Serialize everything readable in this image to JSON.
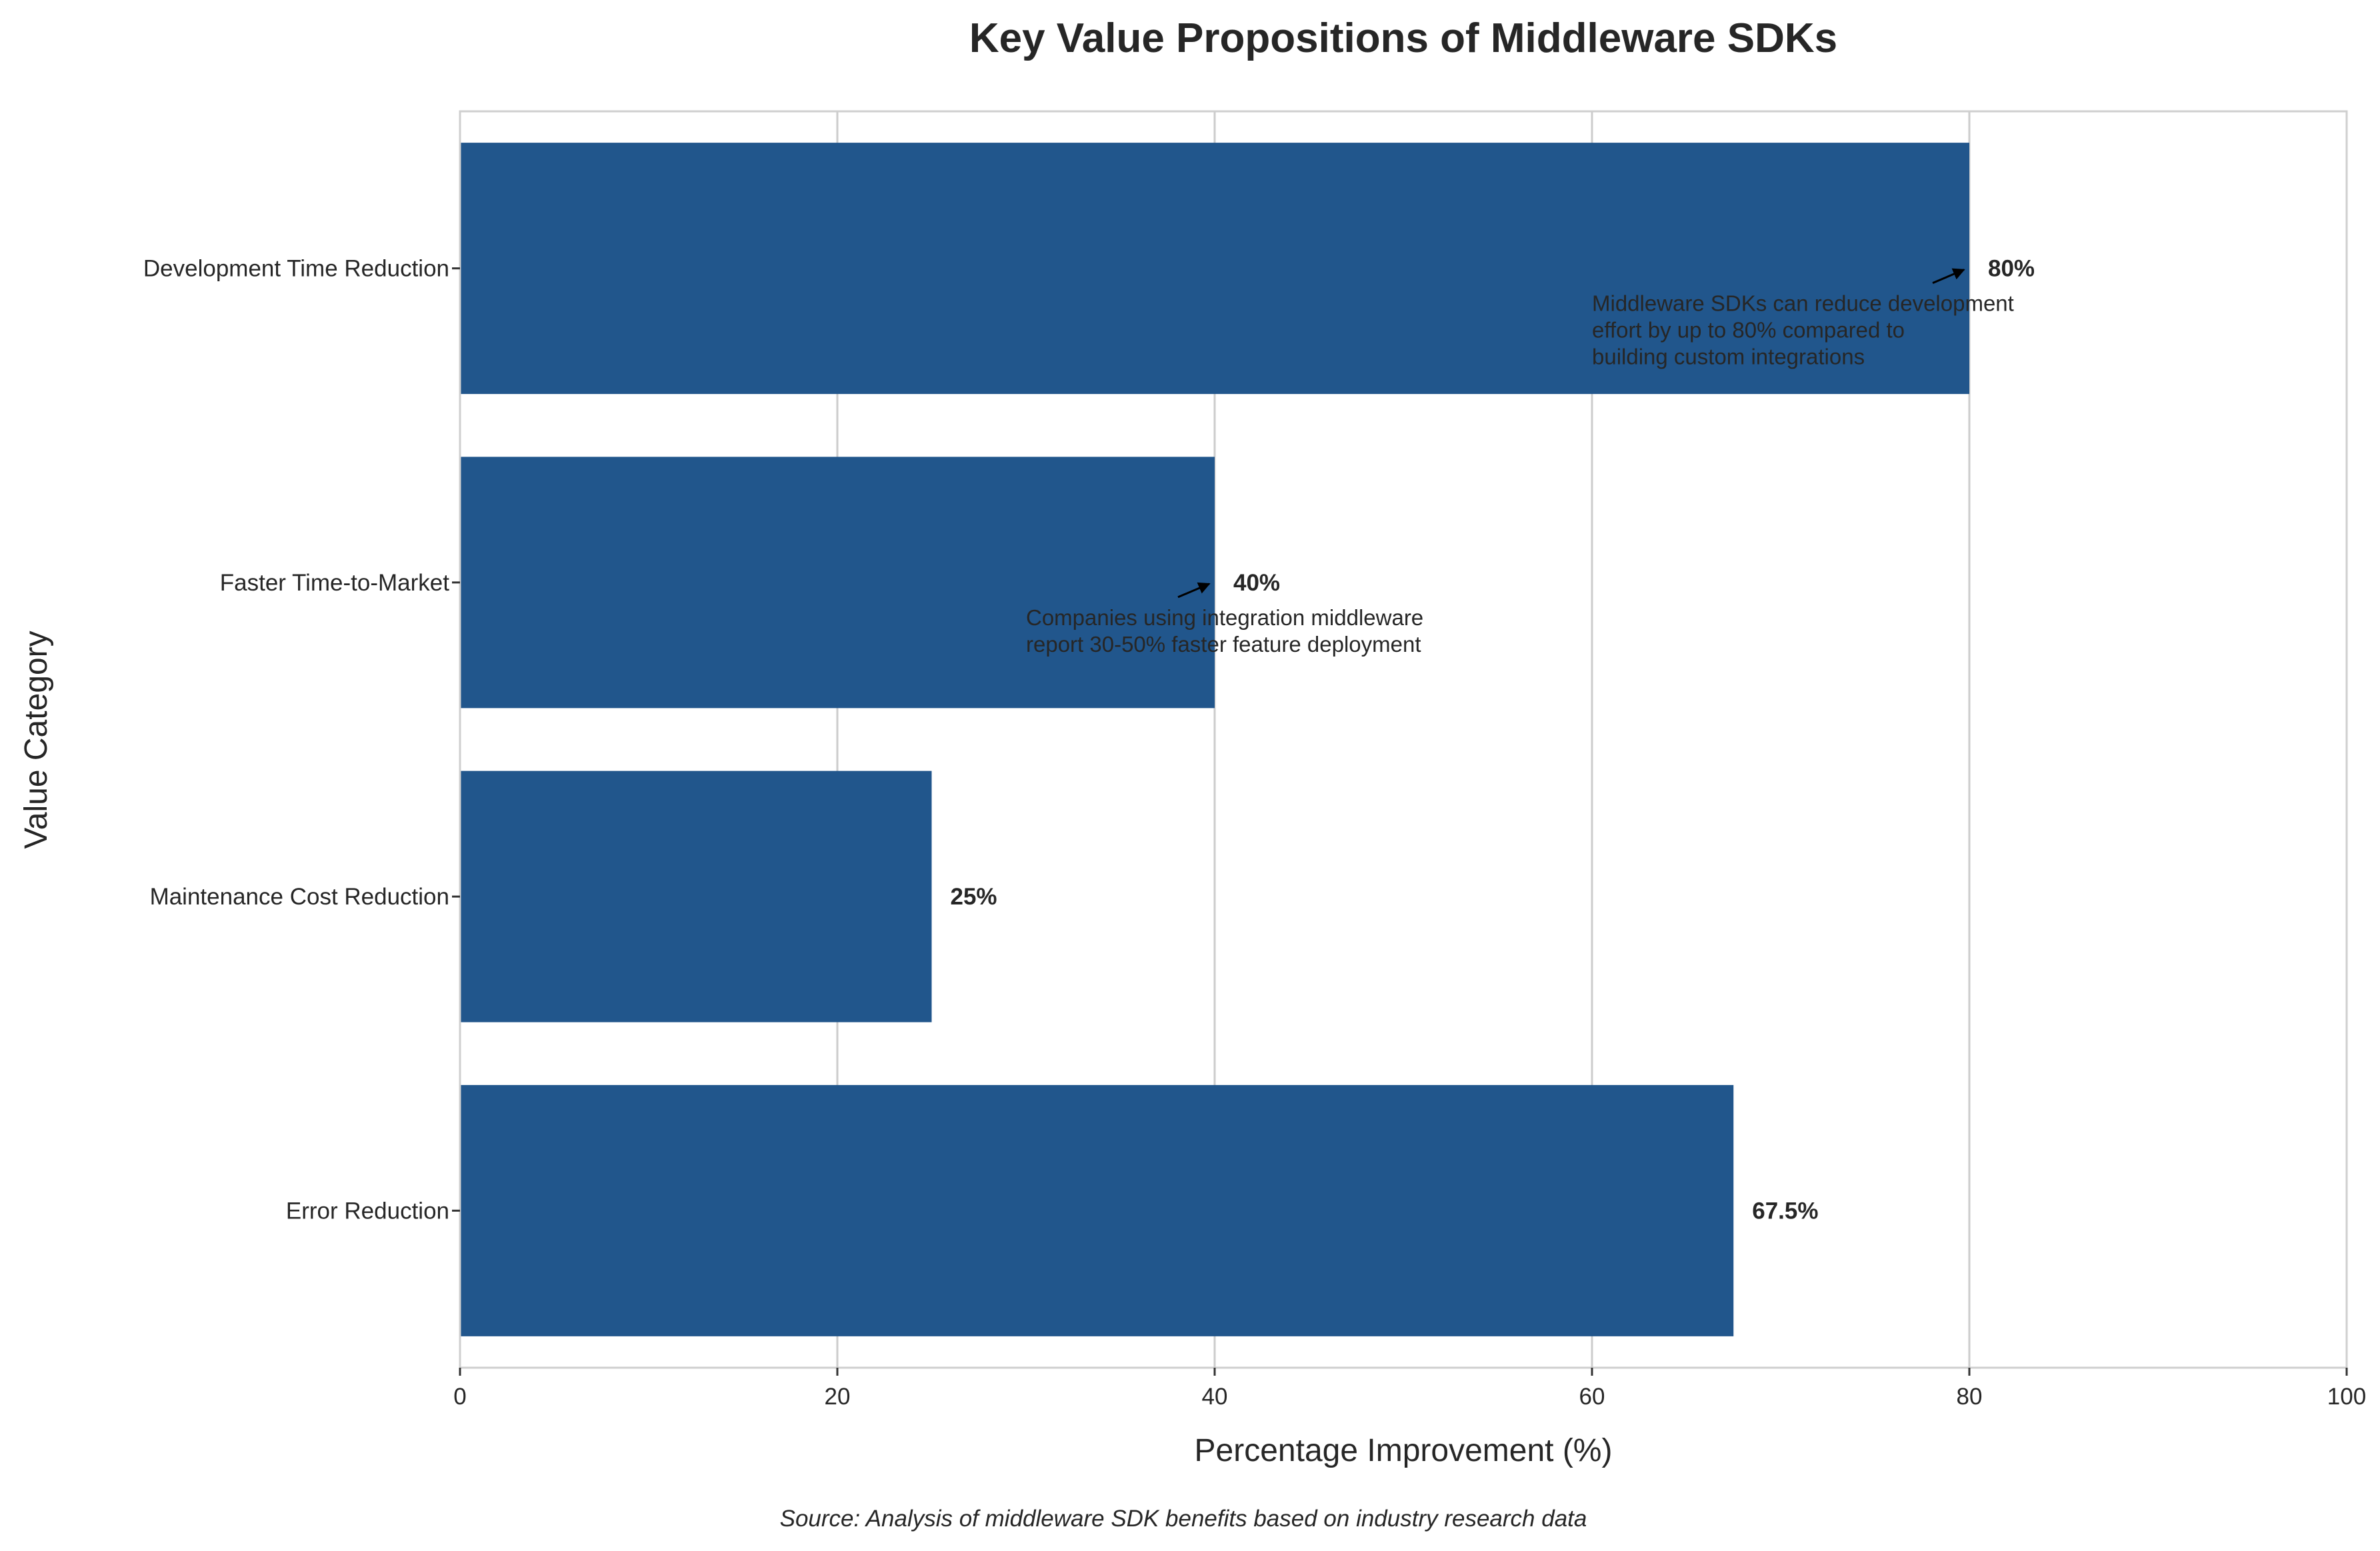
{
  "chart_data": {
    "type": "bar",
    "orientation": "horizontal",
    "title": "Key Value Propositions of Middleware SDKs",
    "xlabel": "Percentage Improvement (%)",
    "ylabel": "Value Category",
    "source_note": "Source: Analysis of middleware SDK benefits based on industry research data",
    "categories": [
      "Development Time Reduction",
      "Faster Time-to-Market",
      "Maintenance Cost Reduction",
      "Error Reduction"
    ],
    "values": [
      80,
      40,
      25,
      67.5
    ],
    "value_labels": [
      "80%",
      "40%",
      "25%",
      "67.5%"
    ],
    "xlim": [
      0,
      100
    ],
    "xticks": [
      0,
      20,
      40,
      60,
      80,
      100
    ],
    "xtick_labels": [
      "0",
      "20",
      "40",
      "60",
      "80",
      "100"
    ],
    "grid": "vertical",
    "bar_color": "#21568c",
    "annotations": [
      {
        "category": "Development Time Reduction",
        "lines": [
          "Middleware SDKs can reduce development",
          "effort by up to 80% compared to",
          "building custom integrations"
        ]
      },
      {
        "category": "Faster Time-to-Market",
        "lines": [
          "Companies using integration middleware",
          "report 30-50% faster feature deployment"
        ]
      }
    ]
  }
}
